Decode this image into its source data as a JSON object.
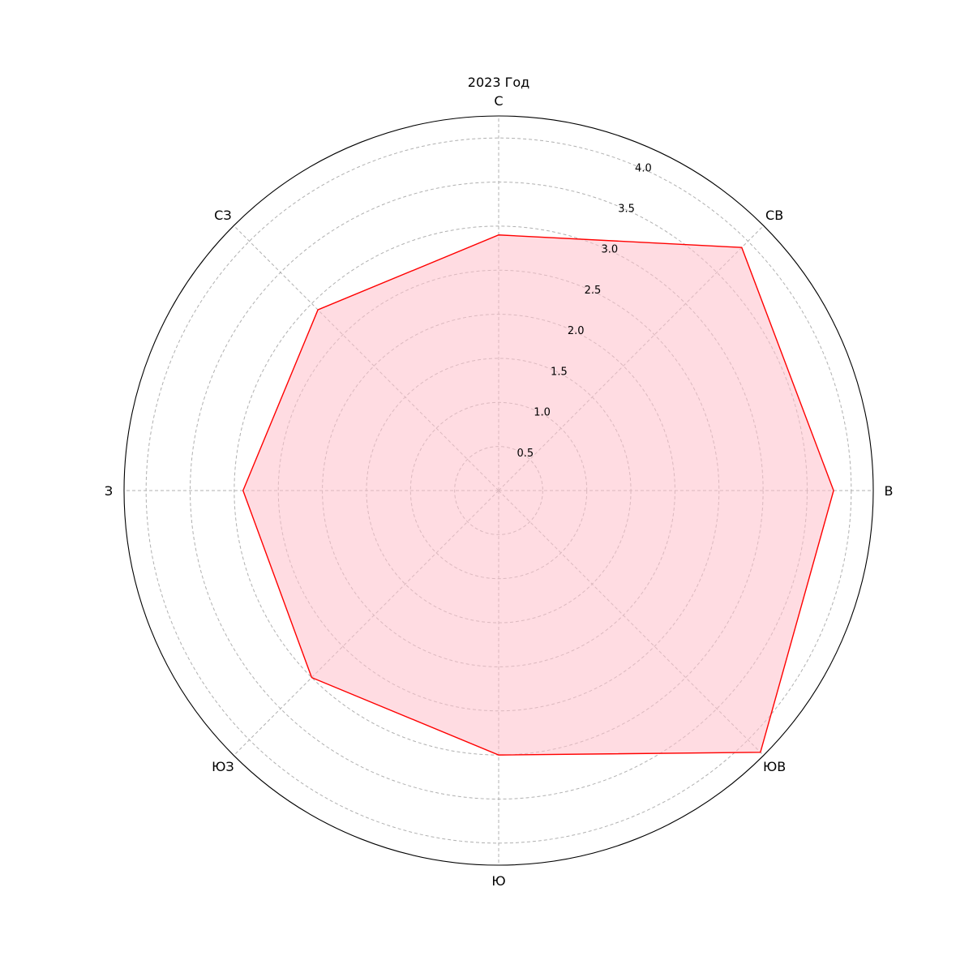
{
  "chart_data": {
    "type": "radar",
    "title": "2023 Год",
    "categories": [
      "С",
      "СВ",
      "В",
      "ЮВ",
      "Ю",
      "ЮЗ",
      "З",
      "СЗ"
    ],
    "series": [
      {
        "values": [
          2.9,
          3.9,
          3.8,
          4.2,
          3.0,
          3.0,
          2.9,
          2.9
        ],
        "line_color": "#ff0000",
        "fill_color": "#ffc0cb",
        "fill_opacity": 0.55
      }
    ],
    "rlim": [
      0,
      4.25
    ],
    "r_ticks": [
      "0.5",
      "1.0",
      "1.5",
      "2.0",
      "2.5",
      "3.0",
      "3.5",
      "4.0"
    ],
    "grid": true,
    "direction": "clockwise",
    "zero_location": "north"
  }
}
